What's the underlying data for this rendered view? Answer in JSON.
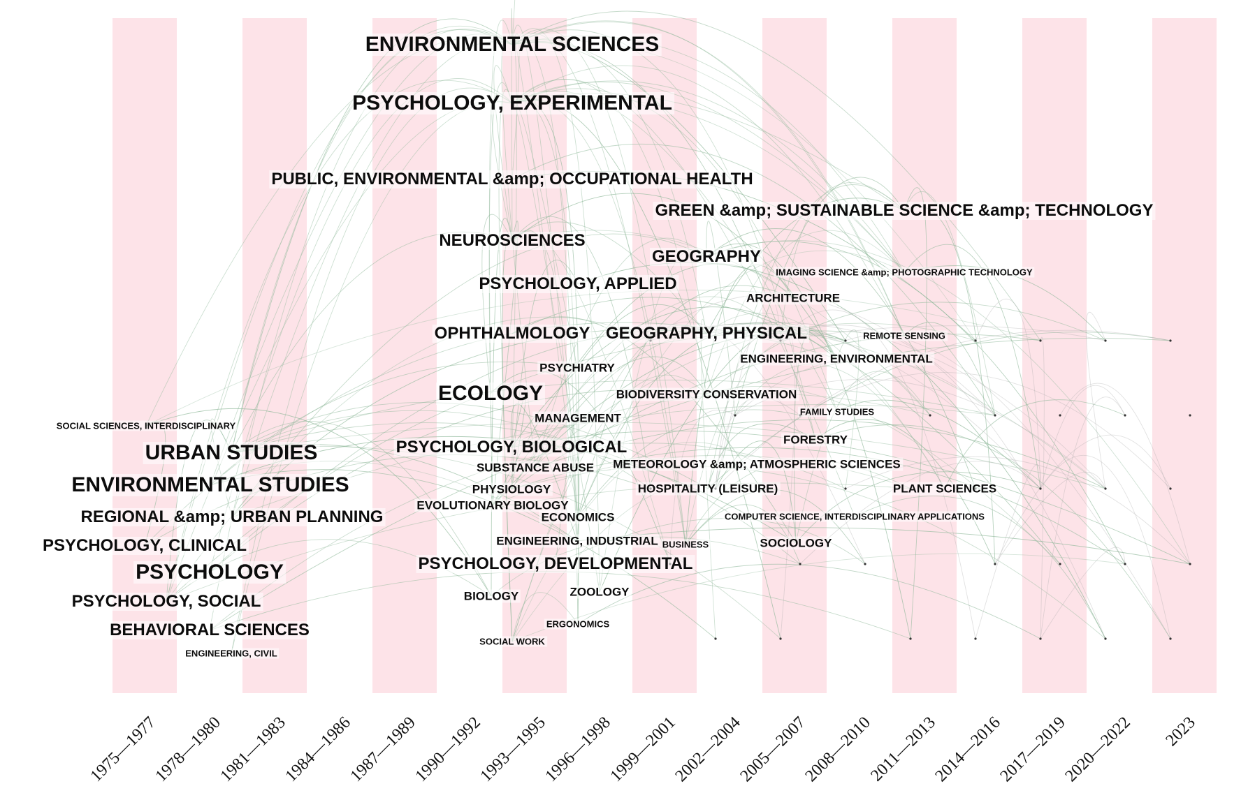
{
  "periods": [
    {
      "label": "1975—1977"
    },
    {
      "label": "1978—1980"
    },
    {
      "label": "1981—1983"
    },
    {
      "label": "1984—1986"
    },
    {
      "label": "1987—1989"
    },
    {
      "label": "1990—1992"
    },
    {
      "label": "1993—1995"
    },
    {
      "label": "1996—1998"
    },
    {
      "label": "1999—2001"
    },
    {
      "label": "2002—2004"
    },
    {
      "label": "2005—2007"
    },
    {
      "label": "2008—2010"
    },
    {
      "label": "2011—2013"
    },
    {
      "label": "2014—2016"
    },
    {
      "label": "2017—2019"
    },
    {
      "label": "2020—2022"
    },
    {
      "label": "2023"
    }
  ],
  "colors": {
    "band": "#fde3e8",
    "link": "#8fb89a",
    "link_alt": "#a9a9a9"
  },
  "categories": [
    {
      "text": "ENVIRONMENTAL SCIENCES",
      "period": 6,
      "size": "xl"
    },
    {
      "text": "PSYCHOLOGY, EXPERIMENTAL",
      "period": 6,
      "size": "xl"
    },
    {
      "text": "PUBLIC, ENVIRONMENTAL &amp; OCCUPATIONAL HEALTH",
      "period": 6,
      "size": "l"
    },
    {
      "text": "GREEN &amp; SUSTAINABLE SCIENCE &amp; TECHNOLOGY",
      "period": 12,
      "size": "l"
    },
    {
      "text": "NEUROSCIENCES",
      "period": 6,
      "size": "l"
    },
    {
      "text": "GEOGRAPHY",
      "period": 9,
      "size": "l"
    },
    {
      "text": "IMAGING SCIENCE &amp; PHOTOGRAPHIC TECHNOLOGY",
      "period": 12,
      "size": "s"
    },
    {
      "text": "PSYCHOLOGY, APPLIED",
      "period": 7,
      "size": "l"
    },
    {
      "text": "ARCHITECTURE",
      "period": 10,
      "size": "m"
    },
    {
      "text": "OPHTHALMOLOGY",
      "period": 6,
      "size": "l"
    },
    {
      "text": "GEOGRAPHY, PHYSICAL",
      "period": 9,
      "size": "l"
    },
    {
      "text": "REMOTE SENSING",
      "period": 12,
      "size": "s"
    },
    {
      "text": "ENGINEERING, ENVIRONMENTAL",
      "period": 11,
      "size": "m"
    },
    {
      "text": "PSYCHIATRY",
      "period": 7,
      "size": "m"
    },
    {
      "text": "ECOLOGY",
      "period": 6,
      "size": "xl"
    },
    {
      "text": "BIODIVERSITY CONSERVATION",
      "period": 9,
      "size": "m"
    },
    {
      "text": "FAMILY STUDIES",
      "period": 11,
      "size": "s"
    },
    {
      "text": "SOCIAL SCIENCES, INTERDISCIPLINARY",
      "period": 0,
      "size": "s"
    },
    {
      "text": "MANAGEMENT",
      "period": 7,
      "size": "m"
    },
    {
      "text": "FORESTRY",
      "period": 11,
      "size": "m"
    },
    {
      "text": "URBAN STUDIES",
      "period": 1,
      "size": "xl"
    },
    {
      "text": "PSYCHOLOGY, BIOLOGICAL",
      "period": 6,
      "size": "l"
    },
    {
      "text": "SUBSTANCE ABUSE",
      "period": 6,
      "size": "m"
    },
    {
      "text": "METEOROLOGY &amp; ATMOSPHERIC SCIENCES",
      "period": 10,
      "size": "m"
    },
    {
      "text": "ENVIRONMENTAL STUDIES",
      "period": 1,
      "size": "xl"
    },
    {
      "text": "PHYSIOLOGY",
      "period": 6,
      "size": "m"
    },
    {
      "text": "HOSPITALITY (LEISURE)",
      "period": 9,
      "size": "m"
    },
    {
      "text": "PLANT SCIENCES",
      "period": 13,
      "size": "m"
    },
    {
      "text": "EVOLUTIONARY BIOLOGY",
      "period": 6,
      "size": "m"
    },
    {
      "text": "REGIONAL &amp; URBAN PLANNING",
      "period": 2,
      "size": "l"
    },
    {
      "text": "ECONOMICS",
      "period": 7,
      "size": "m"
    },
    {
      "text": "COMPUTER SCIENCE, INTERDISCIPLINARY APPLICATIONS",
      "period": 11,
      "size": "s"
    },
    {
      "text": "PSYCHOLOGY, CLINICAL",
      "period": 0,
      "size": "l"
    },
    {
      "text": "ENGINEERING, INDUSTRIAL",
      "period": 7,
      "size": "m"
    },
    {
      "text": "BUSINESS",
      "period": 9,
      "size": "s"
    },
    {
      "text": "SOCIOLOGY",
      "period": 11,
      "size": "m"
    },
    {
      "text": "PSYCHOLOGY",
      "period": 1,
      "size": "xl"
    },
    {
      "text": "PSYCHOLOGY, DEVELOPMENTAL",
      "period": 7,
      "size": "l"
    },
    {
      "text": "ZOOLOGY",
      "period": 7,
      "size": "m"
    },
    {
      "text": "BIOLOGY",
      "period": 6,
      "size": "m"
    },
    {
      "text": "PSYCHOLOGY, SOCIAL",
      "period": 1,
      "size": "l"
    },
    {
      "text": "ERGONOMICS",
      "period": 7,
      "size": "s"
    },
    {
      "text": "BEHAVIORAL SCIENCES",
      "period": 1,
      "size": "l"
    },
    {
      "text": "SOCIAL WORK",
      "period": 6,
      "size": "s"
    },
    {
      "text": "ENGINEERING, CIVIL",
      "period": 2,
      "size": "s"
    }
  ]
}
